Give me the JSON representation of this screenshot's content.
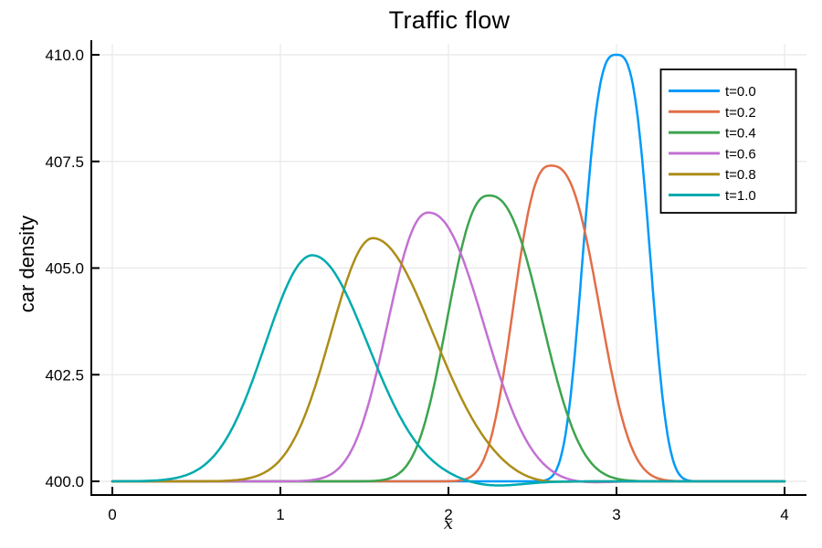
{
  "chart_data": {
    "type": "line",
    "title": "Traffic flow",
    "xlabel": "x",
    "ylabel": "car density",
    "xlim": [
      0,
      4
    ],
    "ylim": [
      400,
      410
    ],
    "grid": true,
    "legend_position": "top-right",
    "baseline": 400,
    "axis_color": "#000000",
    "grid_color": "#e8e8e8",
    "xticks": {
      "values": [
        0,
        1,
        2,
        3,
        4
      ],
      "labels": [
        "0",
        "1",
        "2",
        "3",
        "4"
      ]
    },
    "yticks": {
      "values": [
        400.0,
        402.5,
        405.0,
        407.5,
        410.0
      ],
      "labels": [
        "400.0",
        "402.5",
        "405.0",
        "407.5",
        "410.0"
      ]
    },
    "series": [
      {
        "label": "t=0.0",
        "t": 0.0,
        "color": "#009af9",
        "peak_x": 3.0,
        "peak_y": 410.0,
        "amplitude": 10.0,
        "width_left": 0.185,
        "width_right": 0.185,
        "shape_exponent": 3.0,
        "dip": null
      },
      {
        "label": "t=0.2",
        "t": 0.2,
        "color": "#e26e47",
        "peak_x": 2.61,
        "peak_y": 407.4,
        "amplitude": 7.4,
        "width_left": 0.21,
        "width_right": 0.27,
        "shape_exponent": 2.6,
        "dip": null
      },
      {
        "label": "t=0.4",
        "t": 0.4,
        "color": "#3da44e",
        "peak_x": 2.24,
        "peak_y": 406.7,
        "amplitude": 6.7,
        "width_left": 0.235,
        "width_right": 0.3,
        "shape_exponent": 2.4,
        "dip": null
      },
      {
        "label": "t=0.6",
        "t": 0.6,
        "color": "#c271d2",
        "peak_x": 1.88,
        "peak_y": 406.3,
        "amplitude": 6.3,
        "width_left": 0.235,
        "width_right": 0.32,
        "shape_exponent": 2.2,
        "dip": {
          "x": 2.75,
          "amplitude": 0.05,
          "width": 0.15
        }
      },
      {
        "label": "t=0.8",
        "t": 0.8,
        "color": "#ac8d18",
        "peak_x": 1.55,
        "peak_y": 405.7,
        "amplitude": 5.7,
        "width_left": 0.25,
        "width_right": 0.36,
        "shape_exponent": 2.0,
        "dip": {
          "x": 2.5,
          "amplitude": 0.1,
          "width": 0.16
        }
      },
      {
        "label": "t=1.0",
        "t": 1.0,
        "color": "#00aaae",
        "peak_x": 1.19,
        "peak_y": 405.3,
        "amplitude": 5.3,
        "width_left": 0.28,
        "width_right": 0.33,
        "shape_exponent": 2.0,
        "dip": {
          "x": 2.25,
          "amplitude": 0.12,
          "width": 0.18
        }
      }
    ]
  }
}
